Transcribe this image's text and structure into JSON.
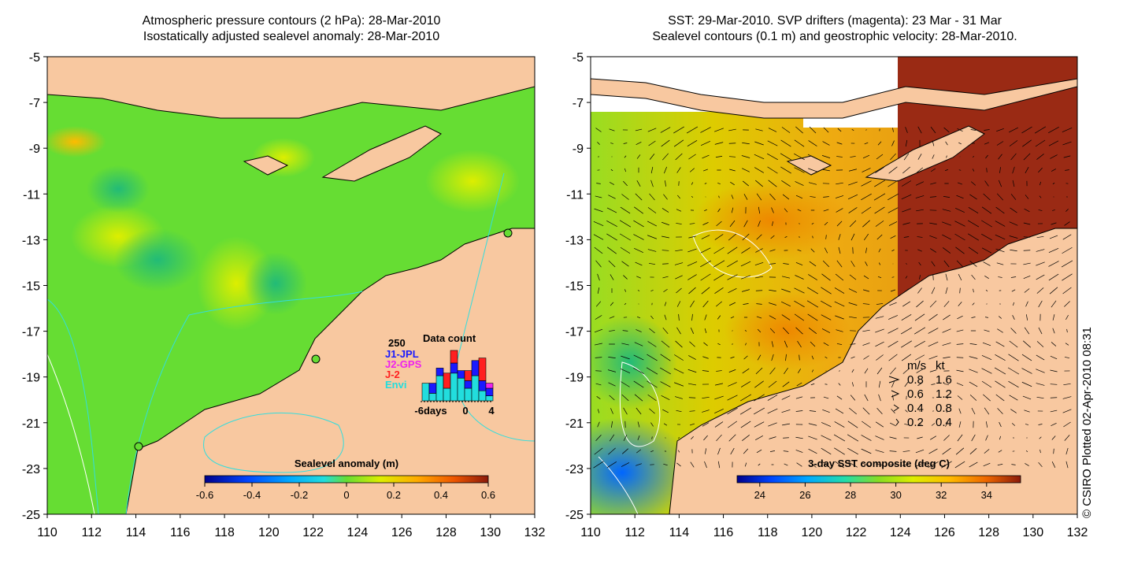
{
  "colors": {
    "land": "#f8c8a0",
    "ocean_base": "#66dd33",
    "coast": "#000000",
    "contour_cyan": "#33dddd",
    "contour_white": "#ffffff",
    "cloud_brown": "#9a2a14",
    "counts_j1": "#1a1aff",
    "counts_j2": "#ee22ee",
    "counts_j2b": "#ff2020",
    "counts_envi": "#22dddd"
  },
  "chart_data": [
    {
      "type": "heatmap",
      "title_line1": "Atmospheric pressure contours (2 hPa): 28-Mar-2010",
      "title_line2": "Isostatically adjusted sealevel anomaly: 28-Mar-2010",
      "xlim": [
        110,
        132
      ],
      "ylim": [
        -25,
        -5
      ],
      "xticks": [
        "110",
        "112",
        "114",
        "116",
        "118",
        "120",
        "122",
        "124",
        "126",
        "128",
        "130",
        "132"
      ],
      "yticks": [
        "-5",
        "-7",
        "-9",
        "-11",
        "-13",
        "-15",
        "-17",
        "-19",
        "-21",
        "-23",
        "-25"
      ],
      "colorbar": {
        "label": "Sealevel anomaly (m)",
        "range": [
          -0.6,
          0.6
        ],
        "ticks": [
          "-0.6",
          "-0.4",
          "-0.2",
          "0",
          "0.2",
          "0.4",
          "0.6"
        ]
      },
      "inset": {
        "title": "Data count",
        "ymax_label": "250",
        "legend": [
          {
            "name": "J1-JPL",
            "color": "#1a1aff"
          },
          {
            "name": "J2-GPS",
            "color": "#ee22ee"
          },
          {
            "name": "J-2",
            "color": "#ff2020"
          },
          {
            "name": "Envi",
            "color": "#22dddd"
          }
        ],
        "x_ticks": [
          "-6days",
          "0",
          "4"
        ],
        "days": [
          -6,
          -5,
          -4,
          -3,
          -2,
          -1,
          0,
          1,
          2,
          3
        ],
        "envi": [
          70,
          30,
          100,
          50,
          110,
          90,
          50,
          100,
          40,
          20
        ],
        "j1": [
          0,
          40,
          30,
          0,
          40,
          30,
          30,
          60,
          40,
          30
        ],
        "j2b": [
          0,
          0,
          0,
          60,
          50,
          0,
          40,
          0,
          90,
          0
        ],
        "j2": [
          0,
          0,
          0,
          0,
          0,
          0,
          0,
          0,
          0,
          20
        ],
        "total_ylim": [
          0,
          250
        ]
      }
    },
    {
      "type": "heatmap",
      "title_line1": "SST: 29-Mar-2010. SVP drifters (magenta): 23 Mar - 31 Mar",
      "title_line2": "Sealevel contours (0.1 m) and geostrophic velocity: 28-Mar-2010.",
      "xlim": [
        110,
        132
      ],
      "ylim": [
        -25,
        -5
      ],
      "xticks": [
        "110",
        "112",
        "114",
        "116",
        "118",
        "120",
        "122",
        "124",
        "126",
        "128",
        "130",
        "132"
      ],
      "yticks": [
        "-5",
        "-7",
        "-9",
        "-11",
        "-13",
        "-15",
        "-17",
        "-19",
        "-21",
        "-23",
        "-25"
      ],
      "colorbar": {
        "label": "3-day SST composite (deg C)",
        "range": [
          23,
          35.5
        ],
        "ticks": [
          "24",
          "26",
          "28",
          "30",
          "32",
          "34"
        ]
      },
      "velocity_key": {
        "header_ms": "m/s",
        "header_kt": "kt",
        "rows": [
          {
            "ms": "0.8",
            "kt": "1.6"
          },
          {
            "ms": "0.6",
            "kt": "1.2"
          },
          {
            "ms": "0.4",
            "kt": "0.8"
          },
          {
            "ms": "0.2",
            "kt": "0.4"
          }
        ]
      }
    }
  ],
  "credit": "© CSIRO Plotted 02-Apr-2010 08:31"
}
